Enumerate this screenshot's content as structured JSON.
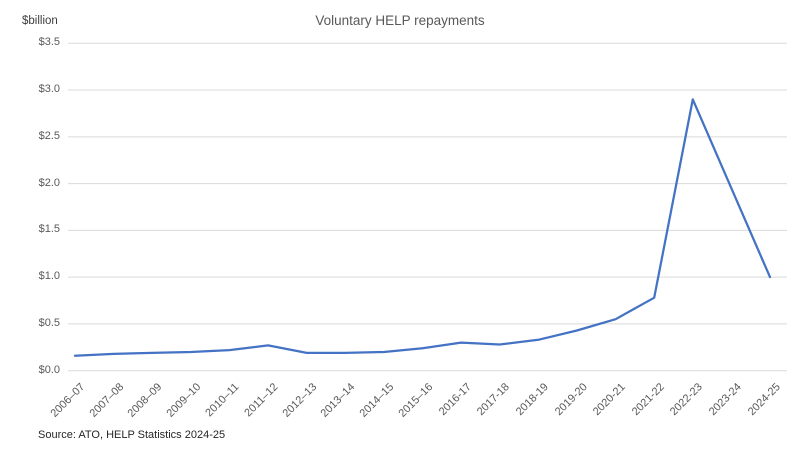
{
  "title": "Voluntary HELP repayments",
  "y_axis_unit_label": "$billion",
  "source_note": "Source: ATO, HELP Statistics 2024-25",
  "colors": {
    "line": "#4472C4",
    "gridline": "#DADADA",
    "title_text": "#595959",
    "axis_text": "#595959",
    "background": "#FFFFFF"
  },
  "chart_data": {
    "type": "line",
    "title": "Voluntary HELP repayments",
    "xlabel": "",
    "ylabel": "$billion",
    "categories": [
      "2006–07",
      "2007–08",
      "2008–09",
      "2009–10",
      "2010–11",
      "2011–12",
      "2012–13",
      "2013–14",
      "2014–15",
      "2015–16",
      "2016-17",
      "2017-18",
      "2018-19",
      "2019-20",
      "2020-21",
      "2021-22",
      "2022-23",
      "2023-24",
      "2024-25"
    ],
    "series": [
      {
        "name": "Voluntary HELP repayments ($billion)",
        "values": [
          0.16,
          0.18,
          0.19,
          0.2,
          0.22,
          0.27,
          0.19,
          0.19,
          0.2,
          0.24,
          0.3,
          0.28,
          0.33,
          0.43,
          0.55,
          0.78,
          2.9,
          1.95,
          1.0
        ]
      }
    ],
    "ylim": [
      0,
      3.5
    ],
    "ytick_step": 0.5,
    "ytick_labels": [
      "$0.0",
      "$0.5",
      "$1.0",
      "$1.5",
      "$2.0",
      "$2.5",
      "$3.0",
      "$3.5"
    ],
    "grid": "horizontal",
    "legend": "none",
    "x_label_rotation_deg": -45
  }
}
